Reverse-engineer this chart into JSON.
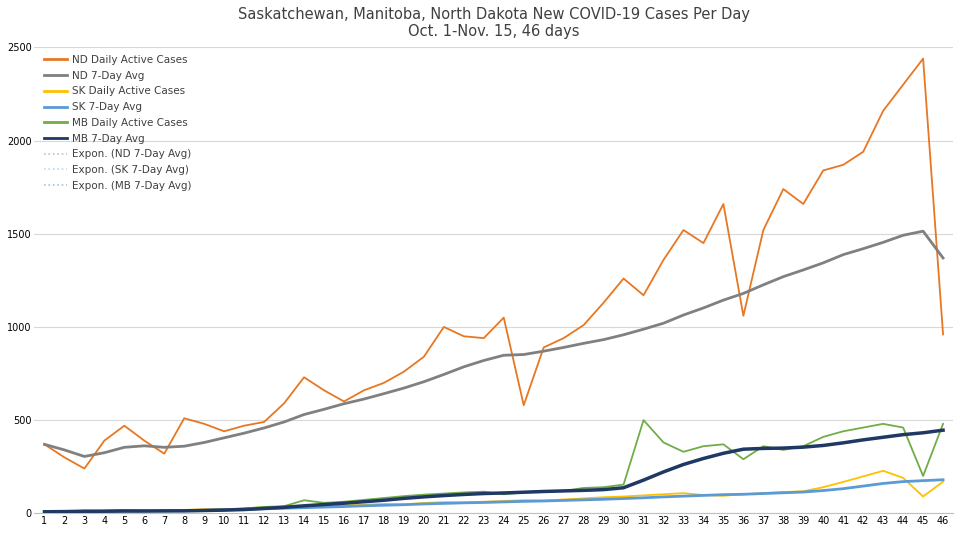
{
  "title_line1": "Saskatchewan, Manitoba, North Dakota New COVID-19 Cases Per Day",
  "title_line2": "Oct. 1-Nov. 15, 46 days",
  "x_days": [
    1,
    2,
    3,
    4,
    5,
    6,
    7,
    8,
    9,
    10,
    11,
    12,
    13,
    14,
    15,
    16,
    17,
    18,
    19,
    20,
    21,
    22,
    23,
    24,
    25,
    26,
    27,
    28,
    29,
    30,
    31,
    32,
    33,
    34,
    35,
    36,
    37,
    38,
    39,
    40,
    41,
    42,
    43,
    44,
    45,
    46
  ],
  "nd_daily": [
    370,
    300,
    240,
    390,
    470,
    390,
    320,
    510,
    480,
    440,
    470,
    490,
    590,
    730,
    660,
    600,
    660,
    700,
    760,
    840,
    1000,
    950,
    940,
    1050,
    580,
    890,
    940,
    1010,
    1130,
    1260,
    1170,
    1360,
    1520,
    1450,
    1660,
    1060,
    1520,
    1740,
    1660,
    1840,
    1870,
    1940,
    2160,
    2300,
    2440,
    960
  ],
  "nd_7avg": [
    370,
    340,
    305,
    325,
    354,
    362,
    354,
    360,
    380,
    405,
    430,
    458,
    490,
    530,
    558,
    588,
    613,
    642,
    672,
    706,
    745,
    786,
    820,
    848,
    852,
    870,
    890,
    912,
    932,
    958,
    988,
    1020,
    1064,
    1102,
    1144,
    1180,
    1226,
    1270,
    1306,
    1344,
    1388,
    1420,
    1454,
    1492,
    1514,
    1370
  ],
  "sk_daily": [
    10,
    8,
    12,
    15,
    18,
    14,
    12,
    18,
    22,
    20,
    26,
    32,
    30,
    34,
    38,
    42,
    46,
    50,
    48,
    55,
    60,
    58,
    62,
    66,
    70,
    68,
    74,
    80,
    86,
    90,
    96,
    102,
    108,
    98,
    94,
    102,
    108,
    114,
    118,
    140,
    168,
    198,
    228,
    190,
    90,
    170
  ],
  "sk_7avg": [
    10,
    9,
    10,
    11,
    13,
    13,
    13,
    14,
    16,
    18,
    21,
    24,
    27,
    30,
    33,
    36,
    40,
    43,
    46,
    50,
    53,
    56,
    58,
    61,
    64,
    66,
    69,
    72,
    75,
    79,
    83,
    88,
    92,
    96,
    100,
    102,
    106,
    110,
    114,
    122,
    132,
    146,
    160,
    170,
    175,
    180
  ],
  "mb_daily": [
    8,
    10,
    14,
    12,
    18,
    14,
    10,
    14,
    18,
    22,
    26,
    34,
    38,
    70,
    56,
    62,
    72,
    82,
    92,
    100,
    106,
    112,
    116,
    102,
    112,
    116,
    120,
    136,
    140,
    154,
    500,
    380,
    330,
    360,
    370,
    290,
    360,
    340,
    360,
    410,
    440,
    460,
    480,
    460,
    200,
    480
  ],
  "mb_7avg": [
    8,
    9,
    11,
    11,
    12,
    12,
    13,
    13,
    15,
    17,
    20,
    26,
    32,
    40,
    47,
    54,
    62,
    70,
    80,
    88,
    95,
    101,
    106,
    109,
    113,
    117,
    120,
    123,
    127,
    137,
    178,
    222,
    262,
    294,
    322,
    344,
    348,
    350,
    355,
    364,
    378,
    394,
    408,
    422,
    432,
    446
  ],
  "nd_color": "#E87722",
  "nd_avg_color": "#808080",
  "sk_color": "#FFC000",
  "sk_avg_color": "#5B9BD5",
  "mb_color": "#70AD47",
  "mb_avg_color": "#1F3864",
  "expon_nd_color": "#C0C0C0",
  "expon_sk_color": "#BDD7EE",
  "expon_mb_color": "#9DC3E6",
  "ylim": [
    0,
    2500
  ],
  "yticks": [
    0,
    500,
    1000,
    1500,
    2000,
    2500
  ],
  "background_color": "#FFFFFF"
}
